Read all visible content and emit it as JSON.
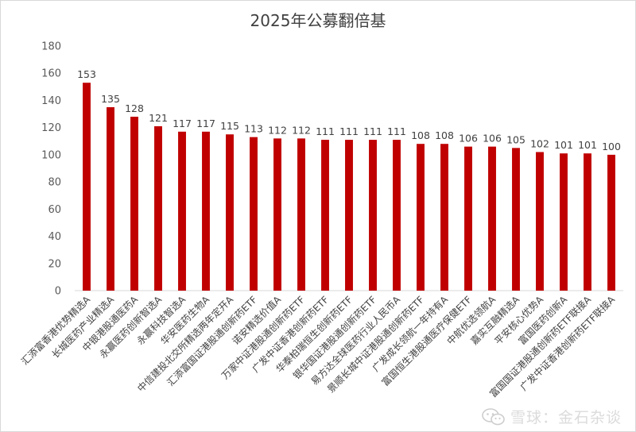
{
  "chart_data": {
    "type": "bar",
    "title": "2025年公募翻倍基",
    "xlabel": "",
    "ylabel": "",
    "ylim": [
      0,
      180
    ],
    "yticks": [
      0,
      20,
      40,
      60,
      80,
      100,
      120,
      140,
      160,
      180
    ],
    "grid": false,
    "legend": "none",
    "bar_color": "#C00000",
    "categories": [
      "汇添富香港优势精选A",
      "长城医药产业精选A",
      "中银港股通医药A",
      "永赢医药创新智选A",
      "永赢科技智选A",
      "华安医药生物A",
      "中信建投北交所精选两年定开A",
      "汇添富国证港股通创新药ETF",
      "诺安精选价值A",
      "万家中证港股通创新药ETF",
      "广发中证香港创新药ETF",
      "华泰柏瑞恒生创新药ETF",
      "银华国证港股通创新药ETF",
      "易方达全球医药行业人民币A",
      "景顺长城中证港股通创新药ETF",
      "广发成长领航一年持有A",
      "富国恒生港股通医疗保健ETF",
      "中航优选领航A",
      "嘉实互融精选A",
      "平安核心优势A",
      "富国医药创新A",
      "富国国证港股通创新药ETF联接A",
      "广发中证香港创新药ETF联接A"
    ],
    "values": [
      153,
      135,
      128,
      121,
      117,
      117,
      115,
      113,
      112,
      112,
      111,
      111,
      111,
      111,
      108,
      108,
      106,
      106,
      105,
      102,
      101,
      101,
      100
    ]
  },
  "watermark": {
    "text": "雪球：金石杂谈",
    "icon": "wechat-icon"
  }
}
